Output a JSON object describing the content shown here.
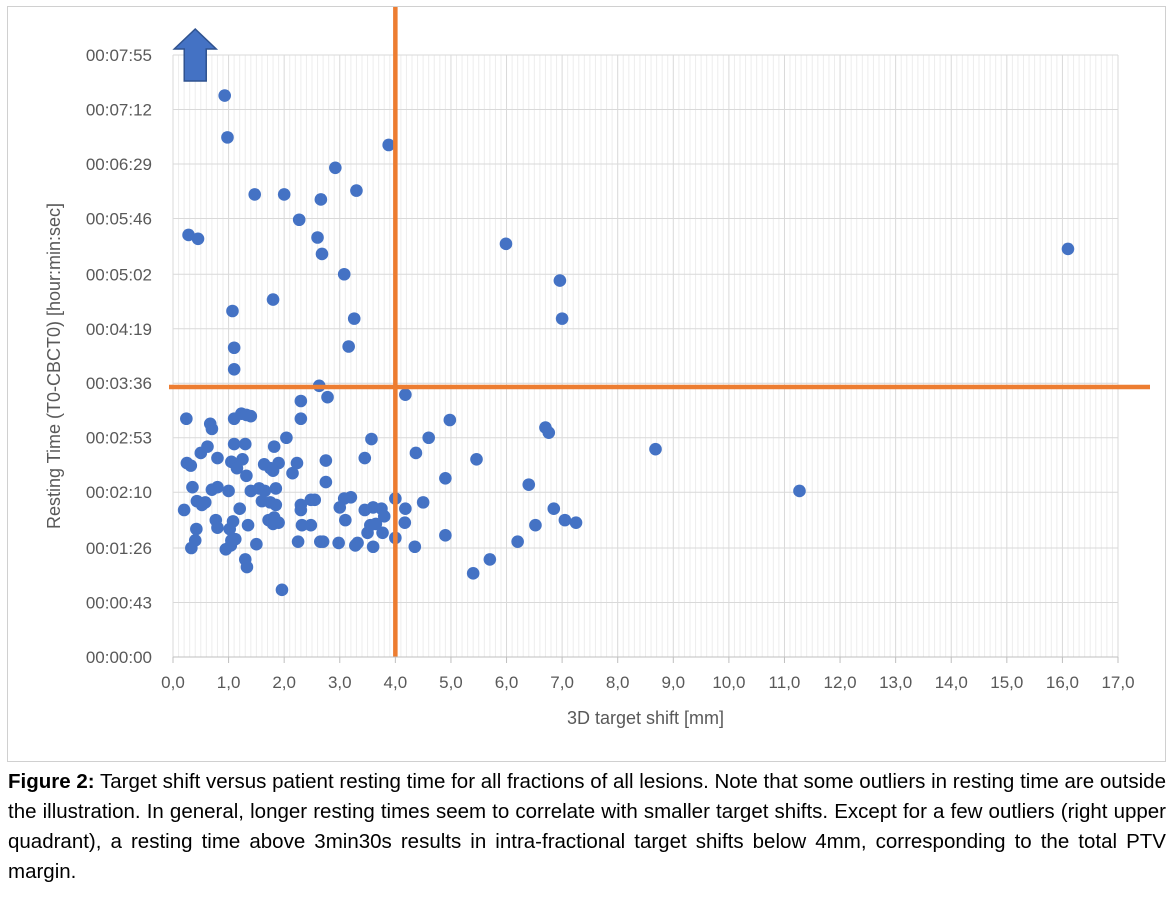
{
  "chart_data": {
    "type": "scatter",
    "xlabel": "3D target shift [mm]",
    "ylabel": "Resting Time (T0-CBCT0) [hour:min:sec]",
    "xlim": [
      0,
      17
    ],
    "ylim": [
      0,
      475
    ],
    "x_ticks": [
      "0,0",
      "1,0",
      "2,0",
      "3,0",
      "4,0",
      "5,0",
      "6,0",
      "7,0",
      "8,0",
      "9,0",
      "10,0",
      "11,0",
      "12,0",
      "13,0",
      "14,0",
      "15,0",
      "16,0",
      "17,0"
    ],
    "y_ticks": [
      {
        "seconds": 0,
        "label": "00:00:00"
      },
      {
        "seconds": 43,
        "label": "00:00:43"
      },
      {
        "seconds": 86,
        "label": "00:01:26"
      },
      {
        "seconds": 130,
        "label": "00:02:10"
      },
      {
        "seconds": 173,
        "label": "00:02:53"
      },
      {
        "seconds": 216,
        "label": "00:03:36"
      },
      {
        "seconds": 259,
        "label": "00:04:19"
      },
      {
        "seconds": 302,
        "label": "00:05:02"
      },
      {
        "seconds": 346,
        "label": "00:05:46"
      },
      {
        "seconds": 389,
        "label": "00:06:29"
      },
      {
        "seconds": 432,
        "label": "00:07:12"
      },
      {
        "seconds": 475,
        "label": "00:07:55"
      }
    ],
    "grid": true,
    "point_color": "#4472C4",
    "reference_lines": {
      "color": "#ED7D31",
      "x": 4.0,
      "y_seconds": 213
    },
    "outlier_arrow": {
      "color": "#4472C4",
      "direction": "up",
      "x": 0.4
    },
    "points": [
      [
        0.93,
        443
      ],
      [
        0.98,
        410
      ],
      [
        3.88,
        404
      ],
      [
        2.92,
        386
      ],
      [
        3.3,
        368
      ],
      [
        1.47,
        365
      ],
      [
        2.0,
        365
      ],
      [
        2.66,
        361
      ],
      [
        2.27,
        345
      ],
      [
        0.28,
        333
      ],
      [
        0.45,
        330
      ],
      [
        2.6,
        331
      ],
      [
        2.68,
        318
      ],
      [
        5.99,
        326
      ],
      [
        16.1,
        322
      ],
      [
        3.08,
        302
      ],
      [
        6.96,
        297
      ],
      [
        1.8,
        282
      ],
      [
        1.07,
        273
      ],
      [
        3.26,
        267
      ],
      [
        7.0,
        267
      ],
      [
        1.1,
        244
      ],
      [
        3.16,
        245
      ],
      [
        1.1,
        227
      ],
      [
        2.63,
        214
      ],
      [
        4.18,
        207
      ],
      [
        2.78,
        205
      ],
      [
        2.3,
        202
      ],
      [
        0.24,
        188
      ],
      [
        1.23,
        192
      ],
      [
        1.32,
        191
      ],
      [
        1.4,
        190
      ],
      [
        1.1,
        188
      ],
      [
        2.3,
        188
      ],
      [
        4.98,
        187
      ],
      [
        0.67,
        184
      ],
      [
        0.7,
        180
      ],
      [
        6.7,
        181
      ],
      [
        6.76,
        177
      ],
      [
        2.04,
        173
      ],
      [
        3.57,
        172
      ],
      [
        4.6,
        173
      ],
      [
        0.62,
        166
      ],
      [
        1.1,
        168
      ],
      [
        1.3,
        168
      ],
      [
        1.82,
        166
      ],
      [
        8.68,
        164
      ],
      [
        0.5,
        161
      ],
      [
        3.45,
        157
      ],
      [
        4.37,
        161
      ],
      [
        0.25,
        153
      ],
      [
        0.32,
        151
      ],
      [
        0.8,
        157
      ],
      [
        1.05,
        154
      ],
      [
        1.25,
        156
      ],
      [
        1.64,
        152
      ],
      [
        1.75,
        149
      ],
      [
        1.9,
        153
      ],
      [
        2.23,
        153
      ],
      [
        2.75,
        155
      ],
      [
        5.46,
        156
      ],
      [
        1.15,
        149
      ],
      [
        1.8,
        147
      ],
      [
        2.15,
        145
      ],
      [
        1.32,
        143
      ],
      [
        2.75,
        138
      ],
      [
        4.9,
        141
      ],
      [
        0.35,
        134
      ],
      [
        0.7,
        132
      ],
      [
        0.8,
        134
      ],
      [
        1.0,
        131
      ],
      [
        1.4,
        131
      ],
      [
        1.55,
        133
      ],
      [
        1.65,
        131
      ],
      [
        1.85,
        133
      ],
      [
        6.4,
        136
      ],
      [
        11.27,
        131
      ],
      [
        0.43,
        123
      ],
      [
        0.58,
        122
      ],
      [
        0.52,
        120
      ],
      [
        0.2,
        116
      ],
      [
        1.2,
        117
      ],
      [
        1.6,
        123
      ],
      [
        1.75,
        122
      ],
      [
        1.85,
        120
      ],
      [
        2.3,
        120
      ],
      [
        2.48,
        124
      ],
      [
        2.55,
        124
      ],
      [
        2.3,
        116
      ],
      [
        3.0,
        118
      ],
      [
        3.08,
        125
      ],
      [
        3.2,
        126
      ],
      [
        3.45,
        116
      ],
      [
        3.6,
        118
      ],
      [
        3.75,
        117
      ],
      [
        4.0,
        125
      ],
      [
        4.18,
        117
      ],
      [
        4.5,
        122
      ],
      [
        6.85,
        117
      ],
      [
        0.77,
        108
      ],
      [
        1.08,
        107
      ],
      [
        1.35,
        104
      ],
      [
        1.72,
        108
      ],
      [
        1.82,
        110
      ],
      [
        1.8,
        105
      ],
      [
        1.9,
        106
      ],
      [
        2.32,
        104
      ],
      [
        2.48,
        104
      ],
      [
        3.1,
        108
      ],
      [
        3.55,
        104
      ],
      [
        3.65,
        105
      ],
      [
        3.8,
        111
      ],
      [
        4.17,
        106
      ],
      [
        7.05,
        108
      ],
      [
        7.25,
        106
      ],
      [
        0.42,
        101
      ],
      [
        0.8,
        102
      ],
      [
        1.02,
        101
      ],
      [
        2.25,
        91
      ],
      [
        2.65,
        91
      ],
      [
        2.7,
        91
      ],
      [
        2.98,
        90
      ],
      [
        3.32,
        90
      ],
      [
        3.5,
        98
      ],
      [
        3.77,
        98
      ],
      [
        4.0,
        94
      ],
      [
        4.9,
        96
      ],
      [
        6.52,
        104
      ],
      [
        0.33,
        86
      ],
      [
        0.4,
        92
      ],
      [
        1.05,
        92
      ],
      [
        1.12,
        93
      ],
      [
        1.5,
        89
      ],
      [
        3.28,
        88
      ],
      [
        3.6,
        87
      ],
      [
        4.35,
        87
      ],
      [
        6.2,
        91
      ],
      [
        1.3,
        77
      ],
      [
        1.33,
        71
      ],
      [
        5.7,
        77
      ],
      [
        5.4,
        66
      ],
      [
        1.96,
        53
      ],
      [
        0.95,
        85
      ],
      [
        1.04,
        88
      ]
    ]
  },
  "caption": {
    "label": "Figure 2:",
    "text": " Target shift versus patient resting time for all fractions of all lesions. Note that some outliers in resting time are outside the illustration. In general, longer resting times seem to correlate with smaller target shifts. Except for a few outliers (right upper quadrant), a resting time above 3min30s results in intra-fractional target shifts below 4mm, corresponding to the total PTV margin."
  }
}
